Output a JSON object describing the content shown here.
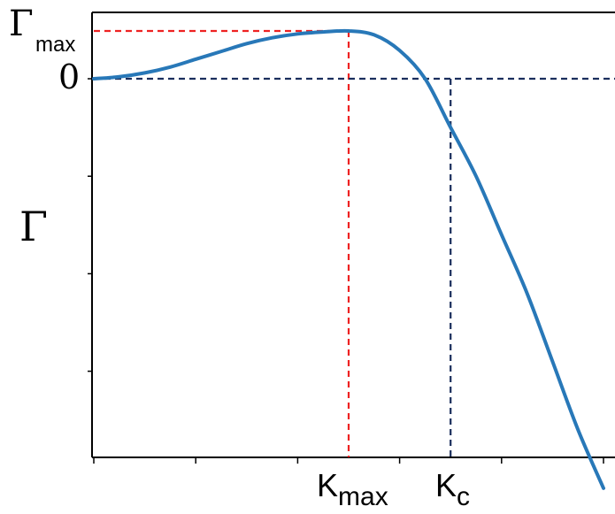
{
  "chart_data": {
    "type": "line",
    "title": "",
    "xlabel": "",
    "ylabel": "Γ",
    "xlim": [
      0,
      1
    ],
    "ylim": [
      -4.2,
      0.7
    ],
    "grid": false,
    "legend": "none",
    "series": [
      {
        "color": "#2878b8",
        "x": [
          0.0,
          0.05,
          0.1,
          0.15,
          0.2,
          0.25,
          0.3,
          0.35,
          0.4,
          0.45,
          0.5,
          0.55,
          0.6,
          0.65,
          0.7,
          0.75,
          0.8,
          0.85,
          0.9,
          0.95,
          1.0
        ],
        "y": [
          0.0,
          0.02,
          0.06,
          0.12,
          0.2,
          0.28,
          0.36,
          0.42,
          0.46,
          0.48,
          0.49,
          0.45,
          0.29,
          0.0,
          -0.5,
          -1.0,
          -1.6,
          -2.2,
          -2.9,
          -3.6,
          -4.2
        ]
      }
    ],
    "markers": {
      "gamma_max": {
        "label_main": "Γ",
        "label_sub": "max",
        "y": 0.49,
        "color": "#ee2222"
      },
      "zero": {
        "label": "0",
        "y": 0.0,
        "color": "#1a2e5c"
      },
      "k_max": {
        "label_main": "K",
        "label_sub": "max",
        "x": 0.5,
        "color": "#ee2222"
      },
      "k_c": {
        "label_main": "K",
        "label_sub": "c",
        "x": 0.7,
        "color": "#1a2e5c"
      }
    },
    "xticks": [
      0.0,
      0.2,
      0.4,
      0.6,
      0.8,
      1.0
    ],
    "yticks": [
      -4.0,
      -3.0,
      -2.0,
      -1.0,
      0.0
    ]
  }
}
